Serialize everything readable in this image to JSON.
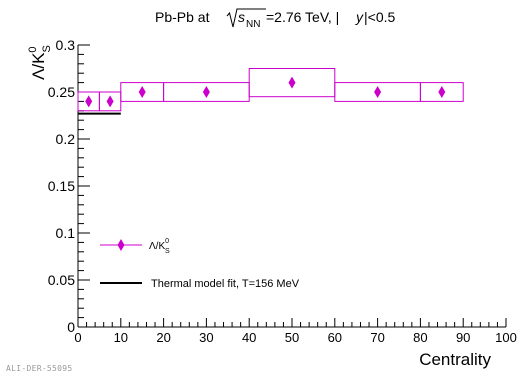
{
  "chart_data": {
    "type": "scatter",
    "title": {
      "system": "Pb-Pb at",
      "sqrt_s": "s",
      "sqrt_sub": "NN",
      "energy": "=2.76 TeV, |",
      "rap": "y",
      "rap_cut": "|<0.5"
    },
    "xlabel": "Centrality",
    "ylabel": {
      "main": "Λ/K",
      "sup": "0",
      "sub": "S"
    },
    "xlim": [
      0,
      100
    ],
    "ylim": [
      0,
      0.3
    ],
    "x_ticks": [
      0,
      10,
      20,
      30,
      40,
      50,
      60,
      70,
      80,
      90,
      100
    ],
    "y_ticks": [
      0,
      0.05,
      0.1,
      0.15,
      0.2,
      0.25,
      0.3
    ],
    "y_tick_labels": [
      "0",
      "0.05",
      "0.1",
      "0.15",
      "0.2",
      "0.25",
      "0.3"
    ],
    "grid": false,
    "legend_position": "bottom-left",
    "series": [
      {
        "name": "Λ/K⁰S",
        "marker": "diamond",
        "color": "#cc00cc",
        "points": [
          {
            "x": 2.5,
            "y": 0.24,
            "bin": [
              0,
              5
            ],
            "syst": 0.02
          },
          {
            "x": 7.5,
            "y": 0.24,
            "bin": [
              5,
              10
            ],
            "syst": 0.02
          },
          {
            "x": 15,
            "y": 0.25,
            "bin": [
              10,
              20
            ],
            "syst": 0.02
          },
          {
            "x": 30,
            "y": 0.25,
            "bin": [
              20,
              40
            ],
            "syst": 0.02
          },
          {
            "x": 50,
            "y": 0.26,
            "bin": [
              40,
              60
            ],
            "syst": 0.03
          },
          {
            "x": 70,
            "y": 0.25,
            "bin": [
              60,
              80
            ],
            "syst": 0.02
          },
          {
            "x": 85,
            "y": 0.25,
            "bin": [
              80,
              90
            ],
            "syst": 0.02
          }
        ]
      },
      {
        "name": "Thermal model fit, T=156 MeV",
        "type": "line",
        "color": "#000000",
        "x_range": [
          0,
          10
        ],
        "y": 0.227
      }
    ],
    "legend": [
      {
        "label": "Λ/K",
        "sup": "0",
        "sub": "S",
        "kind": "marker"
      },
      {
        "label": "Thermal model fit, T=156 MeV",
        "kind": "line"
      }
    ]
  },
  "watermark": "ALI-DER-55095"
}
